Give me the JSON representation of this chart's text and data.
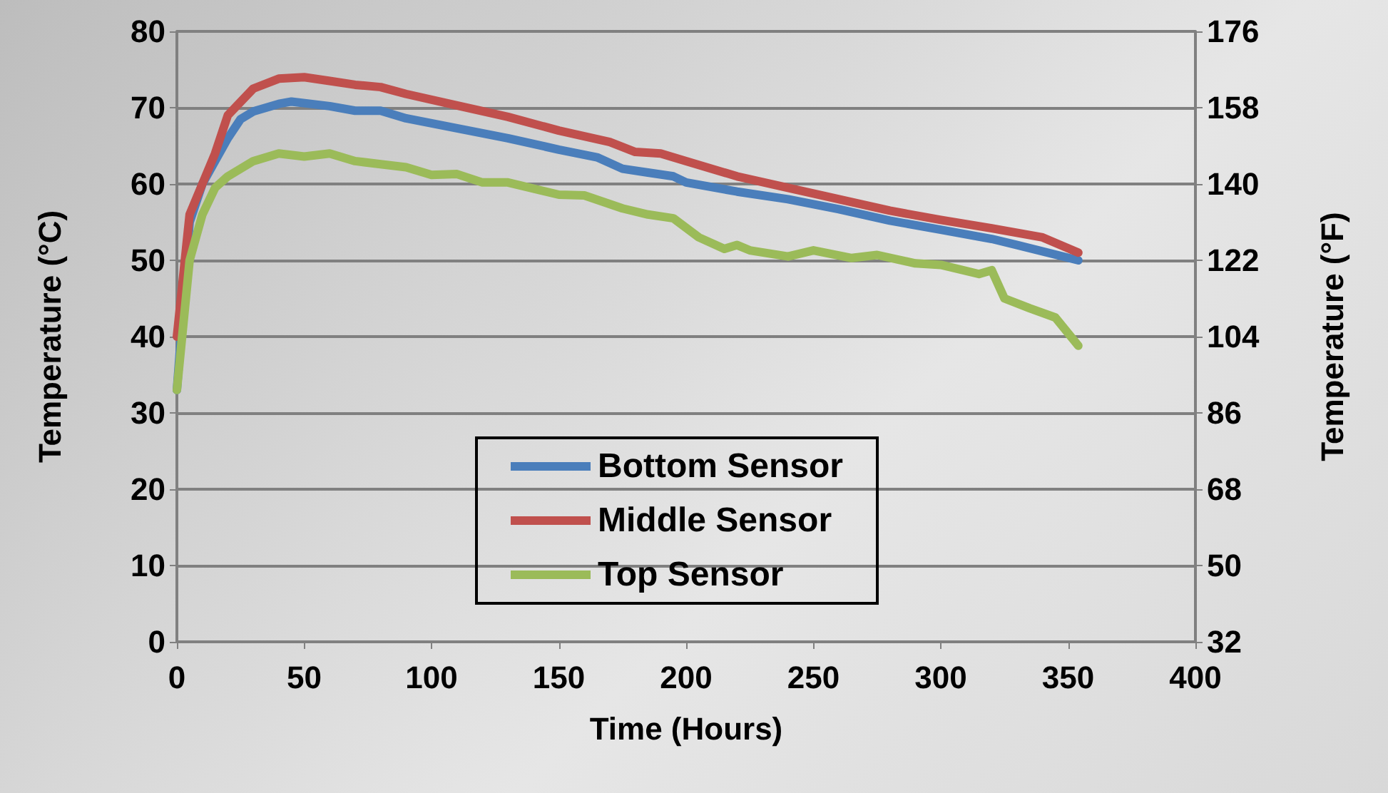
{
  "chart_data": {
    "type": "line",
    "xlabel": "Time (Hours)",
    "ylabel": "Temperature (°C)",
    "y2label": "Temperature (°F)",
    "xlim": [
      0,
      400
    ],
    "xticks": [
      0,
      50,
      100,
      150,
      200,
      250,
      300,
      350,
      400
    ],
    "ylim": [
      0,
      80
    ],
    "yticks": [
      0,
      10,
      20,
      30,
      40,
      50,
      60,
      70,
      80
    ],
    "y2lim": [
      32,
      176
    ],
    "y2ticks": [
      32,
      50,
      68,
      86,
      104,
      122,
      140,
      158,
      176
    ],
    "grid": "y",
    "legend": "bottom",
    "marker": "none",
    "line_style": "solid",
    "series": [
      {
        "name": "Bottom Sensor",
        "color": "#4a7ebb",
        "x": [
          0,
          5,
          10,
          15,
          20,
          25,
          30,
          40,
          45,
          60,
          70,
          80,
          90,
          110,
          130,
          150,
          165,
          175,
          185,
          195,
          200,
          220,
          240,
          260,
          280,
          300,
          320,
          330,
          354
        ],
        "values": [
          33,
          55,
          60,
          63,
          66,
          68.5,
          69.5,
          70.5,
          70.8,
          70.2,
          69.6,
          69.6,
          68.6,
          67.3,
          66,
          64.5,
          63.5,
          62,
          61.5,
          61,
          60.2,
          59,
          58,
          56.7,
          55.2,
          54,
          52.8,
          52,
          50
        ]
      },
      {
        "name": "Middle Sensor",
        "color": "#c0504d",
        "x": [
          0,
          5,
          10,
          15,
          20,
          30,
          40,
          50,
          60,
          70,
          80,
          90,
          110,
          130,
          150,
          170,
          180,
          190,
          200,
          220,
          240,
          260,
          280,
          300,
          320,
          340,
          354
        ],
        "values": [
          40,
          56,
          60,
          64,
          69,
          72.5,
          73.8,
          74,
          73.5,
          73,
          72.7,
          71.8,
          70.3,
          68.8,
          67,
          65.5,
          64.2,
          64,
          63,
          61,
          59.5,
          58,
          56.5,
          55.3,
          54.2,
          53,
          51
        ]
      },
      {
        "name": "Top Sensor",
        "color": "#9bbb59",
        "x": [
          0,
          5,
          10,
          15,
          20,
          30,
          40,
          50,
          60,
          70,
          80,
          90,
          100,
          110,
          120,
          130,
          150,
          160,
          175,
          185,
          195,
          205,
          215,
          220,
          225,
          240,
          250,
          265,
          275,
          290,
          300,
          315,
          320,
          325,
          335,
          345,
          354
        ],
        "values": [
          33,
          50,
          56,
          59.5,
          61,
          63,
          64,
          63.6,
          64,
          63,
          62.6,
          62.2,
          61.2,
          61.3,
          60.2,
          60.2,
          58.6,
          58.5,
          56.8,
          56,
          55.5,
          53,
          51.5,
          52,
          51.3,
          50.5,
          51.3,
          50.3,
          50.7,
          49.6,
          49.4,
          48.2,
          48.7,
          45,
          43.7,
          42.5,
          38.8
        ]
      }
    ]
  }
}
